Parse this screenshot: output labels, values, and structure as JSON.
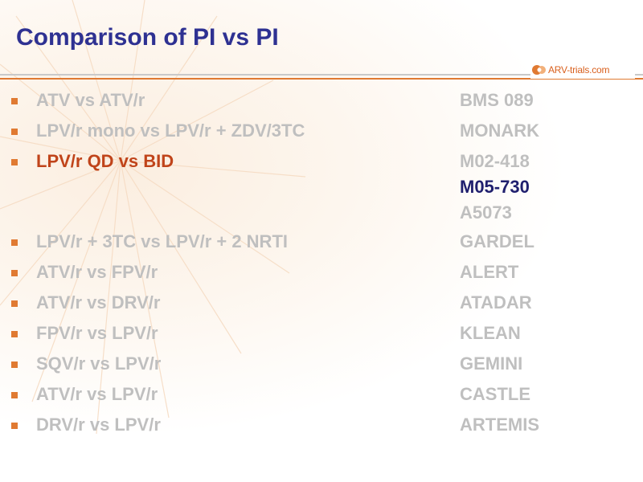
{
  "slide": {
    "title": "Comparison of PI vs PI",
    "logo_text": "ARV-trials.com"
  },
  "colors": {
    "title": "#2e3192",
    "bullet": "#e07a32",
    "muted_text": "#bfbfbf",
    "highlight_label": "#c0441a",
    "highlight_study": "#1f1f6e",
    "rule_orange": "#e07a32",
    "rule_grey": "#c9c9c9"
  },
  "items": [
    {
      "label": "ATV vs ATV/r",
      "study": "BMS 089"
    },
    {
      "label": "LPV/r mono vs LPV/r + ZDV/3TC",
      "study": "MONARK"
    },
    {
      "label": "LPV/r QD vs BID",
      "study": "M02-418"
    },
    {
      "label": "",
      "study": "M05-730"
    },
    {
      "label": "",
      "study": "A5073"
    },
    {
      "label": "LPV/r + 3TC vs LPV/r + 2 NRTI",
      "study": "GARDEL"
    },
    {
      "label": "ATV/r vs FPV/r",
      "study": "ALERT"
    },
    {
      "label": "ATV/r vs DRV/r",
      "study": "ATADAR"
    },
    {
      "label": "FPV/r vs LPV/r",
      "study": "KLEAN"
    },
    {
      "label": "SQV/r vs LPV/r",
      "study": "GEMINI"
    },
    {
      "label": "ATV/r vs LPV/r",
      "study": "CASTLE"
    },
    {
      "label": "DRV/r vs LPV/r",
      "study": "ARTEMIS"
    }
  ]
}
